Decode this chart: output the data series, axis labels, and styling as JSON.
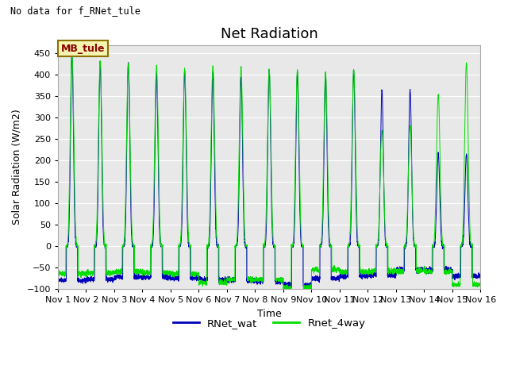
{
  "title": "Net Radiation",
  "subtitle": "No data for f_RNet_tule",
  "ylabel": "Solar Radiation (W/m2)",
  "xlabel": "Time",
  "ylim": [
    -100,
    470
  ],
  "xlim": [
    0,
    15
  ],
  "xtick_labels": [
    "Nov 1",
    "Nov 2",
    "Nov 3",
    "Nov 4",
    "Nov 5",
    "Nov 6",
    "Nov 7",
    "Nov 8",
    "Nov 9",
    "Nov 10",
    "Nov 11",
    "Nov 12",
    "Nov 13",
    "Nov 14",
    "Nov 15",
    "Nov 16"
  ],
  "xtick_positions": [
    0,
    1,
    2,
    3,
    4,
    5,
    6,
    7,
    8,
    9,
    10,
    11,
    12,
    13,
    14,
    15
  ],
  "legend_labels": [
    "RNet_wat",
    "Rnet_4way"
  ],
  "color_blue": "#0000bb",
  "color_green": "#00dd00",
  "bg_color": "#e8e8e8",
  "annotation_text": "MB_tule",
  "title_fontsize": 13,
  "label_fontsize": 9,
  "tick_fontsize": 8,
  "blue_peaks": [
    450,
    430,
    430,
    405,
    410,
    405,
    395,
    410,
    405,
    400,
    410,
    365,
    365,
    215,
    215
  ],
  "green_peaks": [
    455,
    432,
    425,
    422,
    415,
    420,
    418,
    413,
    412,
    406,
    412,
    270,
    280,
    355,
    428
  ],
  "blue_night": [
    -80,
    -78,
    -72,
    -72,
    -75,
    -78,
    -80,
    -82,
    -90,
    -75,
    -70,
    -68,
    -55,
    -55,
    -70
  ],
  "green_night": [
    -65,
    -62,
    -60,
    -62,
    -65,
    -85,
    -78,
    -78,
    -97,
    -55,
    -60,
    -58,
    -58,
    -60,
    -90
  ],
  "yticks": [
    -100,
    -50,
    0,
    50,
    100,
    150,
    200,
    250,
    300,
    350,
    400,
    450
  ]
}
